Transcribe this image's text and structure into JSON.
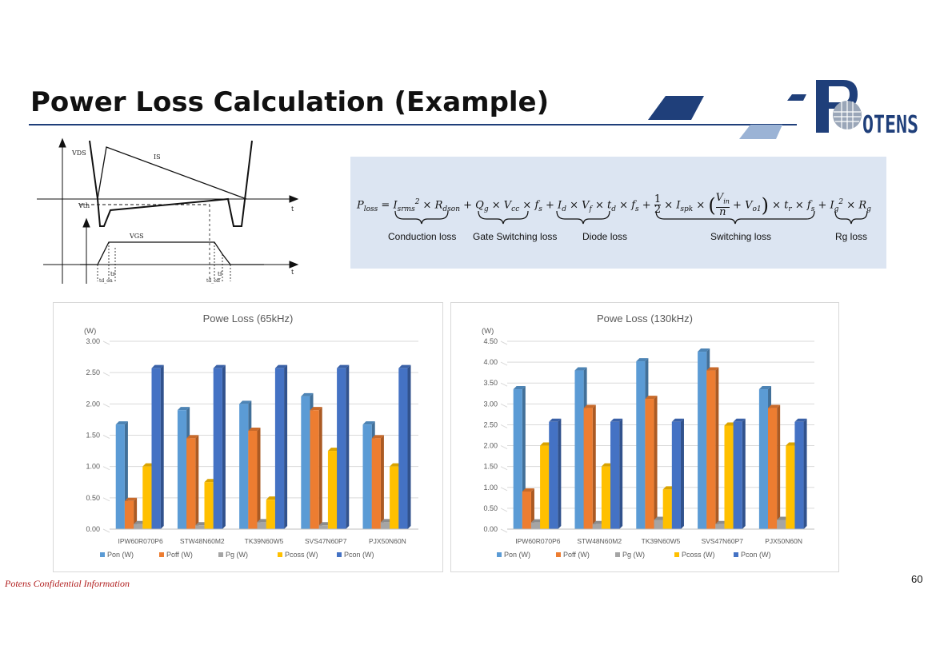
{
  "slide": {
    "title": "Power Loss Calculation (Example)",
    "footer": "Potens Confidential Information",
    "page_number": "60"
  },
  "logo": {
    "text": "OTENS"
  },
  "waveform": {
    "labels": {
      "vds": "VDS",
      "is": "IS",
      "vth": "Vth",
      "vgs": "VGS",
      "t_top": "t",
      "t_bottom": "t",
      "tr": "tr",
      "tf": "tf",
      "td_on": "td_on",
      "td_off": "td_off"
    }
  },
  "formula": {
    "lhs": "P",
    "brace_labels": [
      "Conduction loss",
      "Gate Switching loss",
      "Diode loss",
      "Switching loss",
      "Rg loss"
    ]
  },
  "colors": {
    "pon": "#5b9bd5",
    "poff": "#ed7d31",
    "pg": "#a5a5a5",
    "pcoss": "#ffc000",
    "pcon": "#4472c4",
    "accent": "#1f3f7a"
  },
  "chart_data": [
    {
      "type": "bar",
      "title": "Powe Loss (65kHz)",
      "ylabel": "(W)",
      "categories": [
        "IPW60R070P6",
        "STW48N60M2",
        "TK39N60W5",
        "SVS47N60P7",
        "PJX50N60N"
      ],
      "ylim": [
        0,
        3
      ],
      "yticks": [
        "0.00",
        "0.50",
        "1.00",
        "1.50",
        "2.00",
        "2.50",
        "3.00"
      ],
      "legend_position": "bottom",
      "grid": true,
      "series": [
        {
          "name": "Pon (W)",
          "values": [
            1.67,
            1.9,
            2.0,
            2.12,
            1.67
          ]
        },
        {
          "name": "Poff (W)",
          "values": [
            0.45,
            1.45,
            1.57,
            1.9,
            1.45
          ]
        },
        {
          "name": "Pg (W)",
          "values": [
            0.08,
            0.06,
            0.11,
            0.06,
            0.11
          ]
        },
        {
          "name": "Pcoss (W)",
          "values": [
            1.0,
            0.75,
            0.47,
            1.25,
            1.0
          ]
        },
        {
          "name": "Pcon (W)",
          "values": [
            2.57,
            2.57,
            2.57,
            2.57,
            2.57
          ]
        }
      ]
    },
    {
      "type": "bar",
      "title": "Powe Loss (130kHz)",
      "ylabel": "(W)",
      "categories": [
        "IPW60R070P6",
        "STW48N60M2",
        "TK39N60W5",
        "SVS47N60P7",
        "PJX50N60N"
      ],
      "ylim": [
        0,
        4.5
      ],
      "yticks": [
        "0.00",
        "0.50",
        "1.00",
        "1.50",
        "2.00",
        "2.50",
        "3.00",
        "3.50",
        "4.00",
        "4.50"
      ],
      "legend_position": "bottom",
      "grid": true,
      "series": [
        {
          "name": "Pon (W)",
          "values": [
            3.35,
            3.8,
            4.02,
            4.25,
            3.35
          ]
        },
        {
          "name": "Poff (W)",
          "values": [
            0.9,
            2.9,
            3.12,
            3.8,
            2.9
          ]
        },
        {
          "name": "Pg (W)",
          "values": [
            0.16,
            0.12,
            0.22,
            0.12,
            0.22
          ]
        },
        {
          "name": "Pcoss (W)",
          "values": [
            2.0,
            1.5,
            0.95,
            2.48,
            2.0
          ]
        },
        {
          "name": "Pcon (W)",
          "values": [
            2.57,
            2.57,
            2.57,
            2.57,
            2.57
          ]
        }
      ]
    }
  ]
}
